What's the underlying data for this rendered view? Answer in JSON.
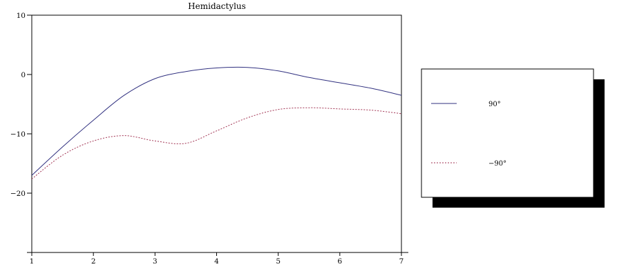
{
  "chart_data": {
    "type": "line",
    "title": "Hemidactylus",
    "xlabel": "",
    "ylabel": "",
    "xlim": [
      1,
      7
    ],
    "ylim": [
      -30,
      10
    ],
    "xticks": [
      1,
      2,
      3,
      4,
      5,
      6,
      7
    ],
    "yticks": [
      10,
      0,
      -10,
      -20
    ],
    "ytick_labels": [
      "10",
      "0",
      "−10",
      "−20"
    ],
    "grid": false,
    "legend_position": "right",
    "series": [
      {
        "name": "90°",
        "color": "#2f2f7f",
        "style": "solid",
        "x": [
          1,
          1.5,
          2,
          2.5,
          3,
          3.5,
          4,
          4.5,
          5,
          5.5,
          6,
          6.5,
          7
        ],
        "y": [
          -17.0,
          -12.2,
          -7.7,
          -3.5,
          -0.7,
          0.5,
          1.1,
          1.2,
          0.6,
          -0.5,
          -1.4,
          -2.3,
          -3.5
        ]
      },
      {
        "name": "−90°",
        "color": "#a03050",
        "style": "dotted",
        "x": [
          1,
          1.5,
          2,
          2.5,
          3,
          3.5,
          4,
          4.5,
          5,
          5.5,
          6,
          6.5,
          7
        ],
        "y": [
          -17.6,
          -13.6,
          -11.2,
          -10.3,
          -11.2,
          -11.6,
          -9.5,
          -7.3,
          -5.9,
          -5.6,
          -5.8,
          -6.0,
          -6.6
        ]
      }
    ]
  }
}
